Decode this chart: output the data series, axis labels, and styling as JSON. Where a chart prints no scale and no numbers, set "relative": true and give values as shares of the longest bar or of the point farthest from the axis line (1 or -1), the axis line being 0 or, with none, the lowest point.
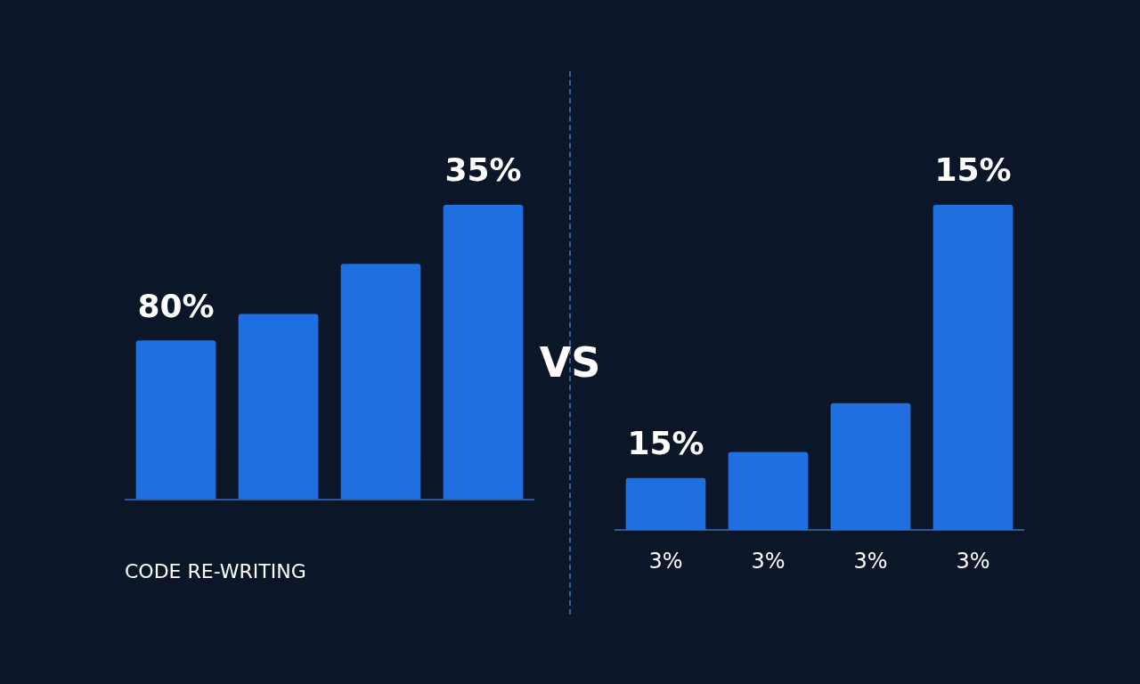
{
  "chart_data": [
    {
      "type": "bar",
      "relative": true,
      "xlabel": "CODE RE-WRITING",
      "categories": [
        null,
        null,
        null,
        null
      ],
      "values": [
        0.54,
        0.63,
        0.8,
        1
      ],
      "color": "#1f6fe0",
      "annotations": [
        "80%",
        "35%"
      ]
    },
    {
      "type": "other",
      "annotations": [
        "VS"
      ]
    },
    {
      "type": "bar",
      "relative": true,
      "categories": [
        "3%",
        "3%",
        "3%",
        "3%"
      ],
      "values": [
        0.16,
        0.24,
        0.39,
        1
      ],
      "color": "#1f6fe0",
      "annotations": [
        "15%",
        "15%"
      ]
    }
  ]
}
